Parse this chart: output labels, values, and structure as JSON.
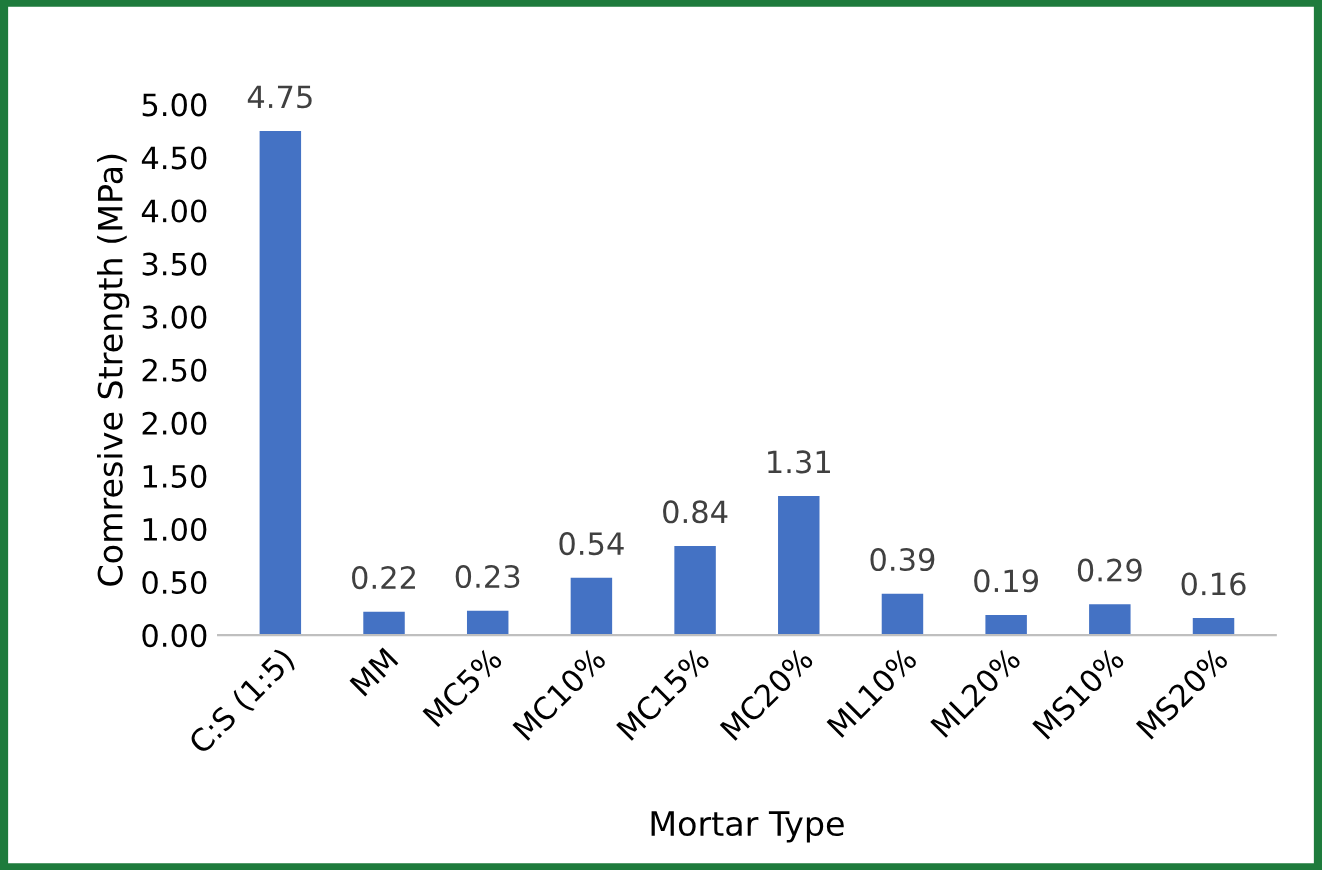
{
  "chart_data": {
    "type": "bar",
    "categories": [
      "C:S (1:5)",
      "MM",
      "MC5%",
      "MC10%",
      "MC15%",
      "MC20%",
      "ML10%",
      "ML20%",
      "MS10%",
      "MS20%"
    ],
    "values": [
      4.75,
      0.22,
      0.23,
      0.54,
      0.84,
      1.31,
      0.39,
      0.19,
      0.29,
      0.16
    ],
    "color": "#4472c4",
    "xlabel": "Mortar Type",
    "ylabel": "Comresive Strength (MPa)",
    "ylim": [
      0,
      5.0
    ],
    "yticks": [
      {
        "value": 0,
        "label": "0.00"
      },
      {
        "value": 0.5,
        "label": "0.50"
      },
      {
        "value": 1.0,
        "label": "1.00"
      },
      {
        "value": 1.5,
        "label": "1.50"
      },
      {
        "value": 2.0,
        "label": "2.00"
      },
      {
        "value": 2.5,
        "label": "2.50"
      },
      {
        "value": 3.0,
        "label": "3.00"
      },
      {
        "value": 3.5,
        "label": "3.50"
      },
      {
        "value": 4.0,
        "label": "4.00"
      },
      {
        "value": 4.5,
        "label": "4.50"
      },
      {
        "value": 5.0,
        "label": "5.00"
      }
    ],
    "data_labels": true
  }
}
